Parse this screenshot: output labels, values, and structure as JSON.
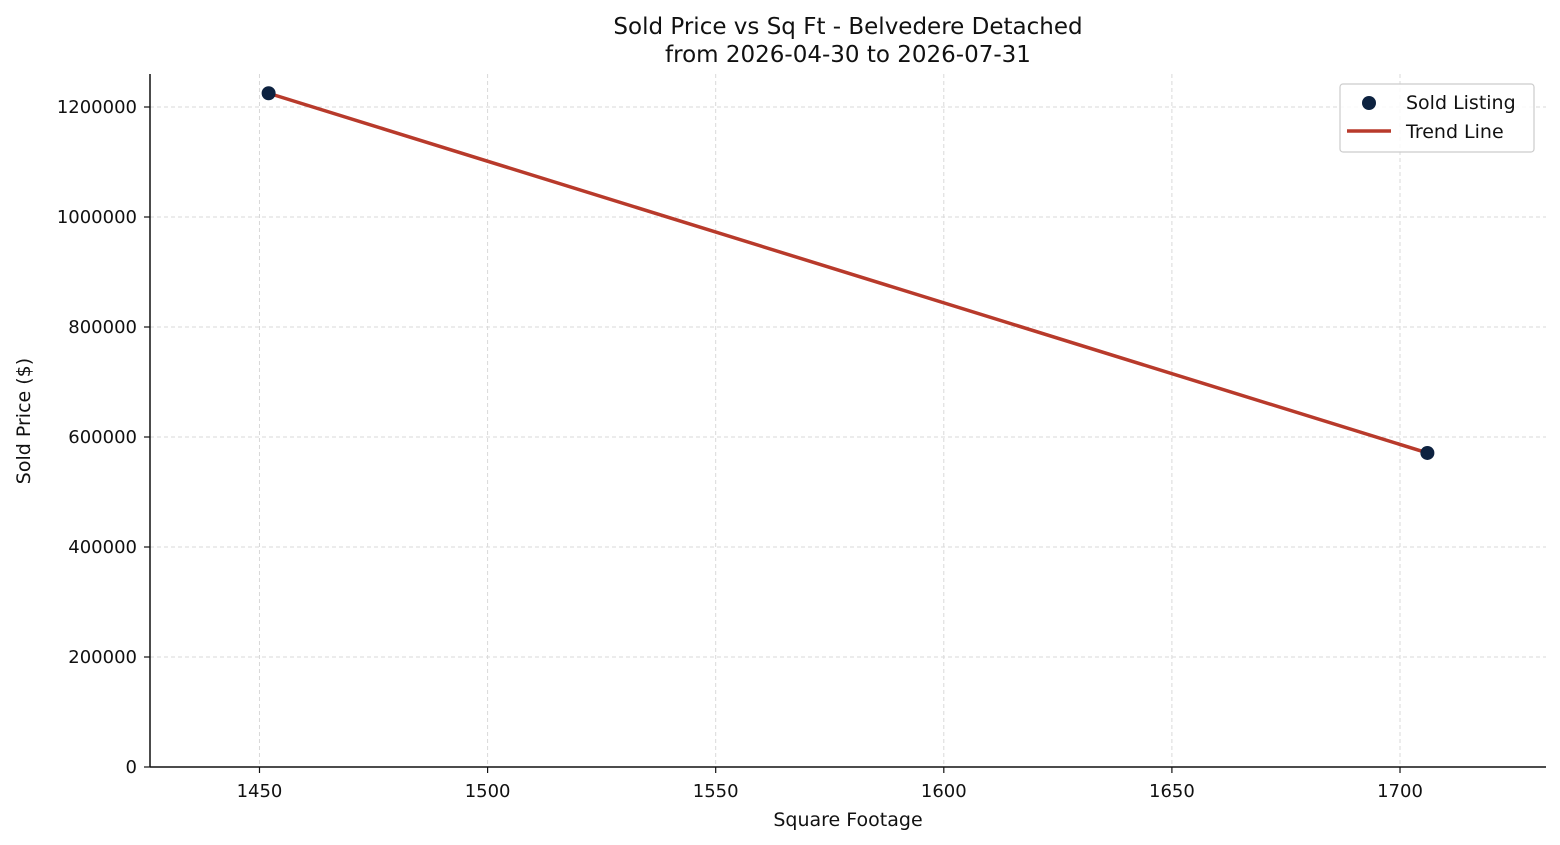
{
  "chart_data": {
    "type": "scatter",
    "title": "Sold Price vs Sq Ft - Belvedere Detached",
    "subtitle": "from 2026-04-30 to 2026-07-31",
    "xlabel": "Square Footage",
    "ylabel": "Sold Price ($)",
    "xlim": [
      1426,
      1732
    ],
    "ylim": [
      0,
      1260000
    ],
    "x_ticks": [
      1450,
      1500,
      1550,
      1600,
      1650,
      1700
    ],
    "y_ticks": [
      0,
      200000,
      400000,
      600000,
      800000,
      1000000,
      1200000
    ],
    "grid": true,
    "legend_position": "top-right",
    "series": [
      {
        "name": "Sold Listing",
        "kind": "scatter",
        "color": "#0d2240",
        "points": [
          {
            "x": 1452,
            "y": 1225000
          },
          {
            "x": 1706,
            "y": 571000
          }
        ]
      },
      {
        "name": "Trend Line",
        "kind": "line",
        "color": "#b83a2b",
        "points": [
          {
            "x": 1452,
            "y": 1225000
          },
          {
            "x": 1706,
            "y": 571000
          }
        ]
      }
    ]
  }
}
